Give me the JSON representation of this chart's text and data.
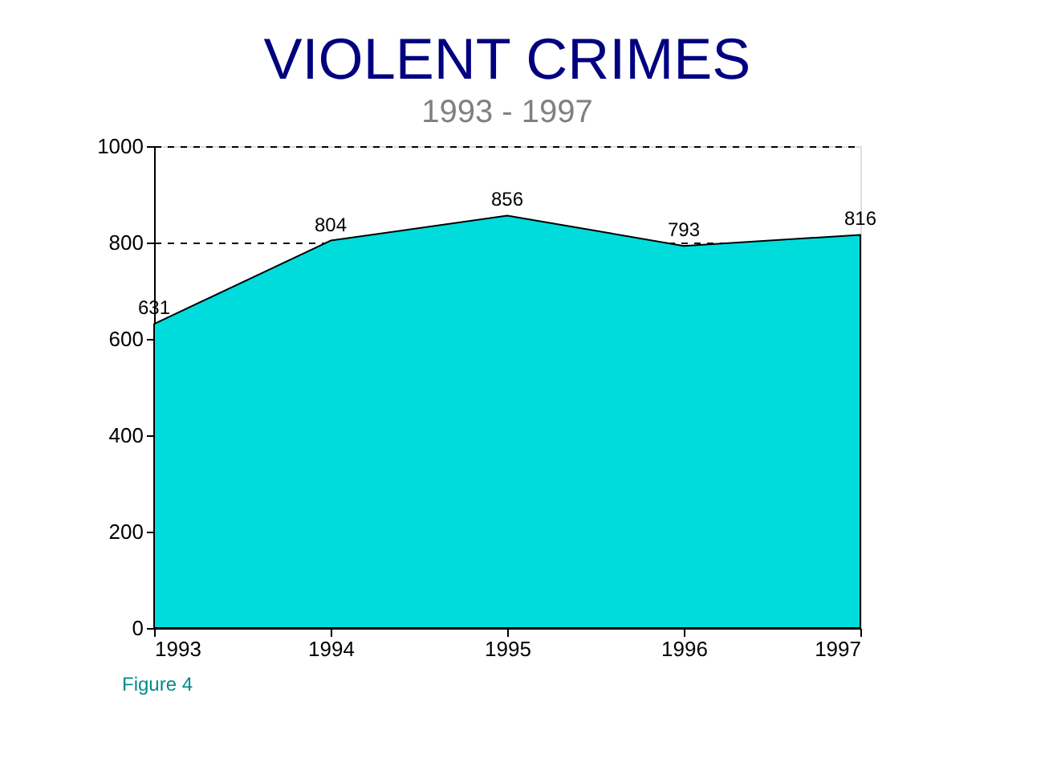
{
  "chart_data": {
    "type": "area",
    "title": "VIOLENT CRIMES",
    "subtitle": "1993 - 1997",
    "categories": [
      "1993",
      "1994",
      "1995",
      "1996",
      "1997"
    ],
    "series": [
      {
        "color": "#00dcdc",
        "values": [
          631,
          804,
          856,
          793,
          816
        ]
      }
    ],
    "ylim": [
      0,
      1000
    ],
    "yticks": [
      0,
      200,
      400,
      600,
      800,
      1000
    ],
    "data_labels": true,
    "grid": "y",
    "annotations": [
      "Figure 4"
    ]
  }
}
